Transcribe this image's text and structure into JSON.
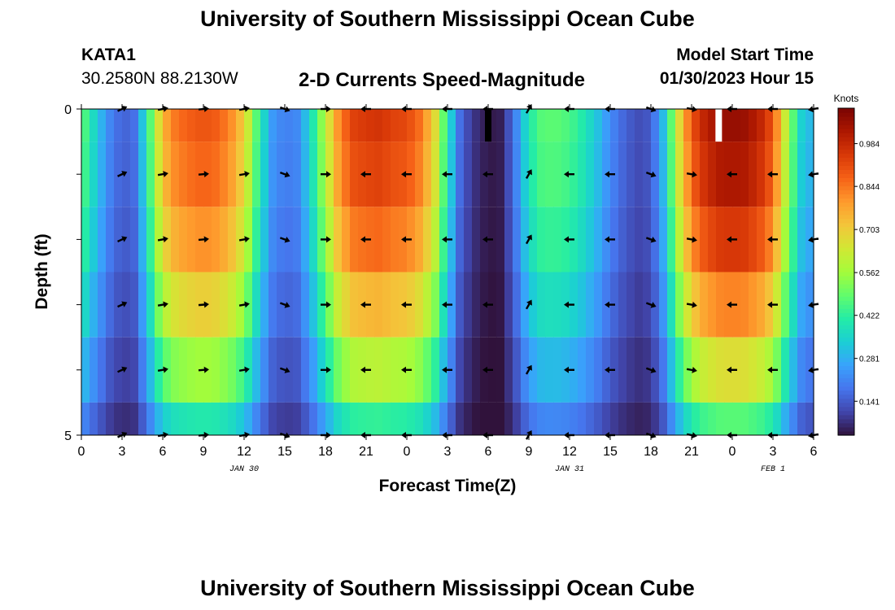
{
  "header": {
    "title": "University of Southern Mississippi Ocean Cube",
    "station": "KATA1",
    "coordinates": "30.2580N  88.2130W",
    "plot_title": "2-D Currents Speed-Magnitude",
    "start_label": "Model Start Time",
    "start_time": "01/30/2023 Hour 15"
  },
  "footer": {
    "title": "University of Southern Mississippi Ocean Cube"
  },
  "chart_data": {
    "type": "heatmap",
    "title": "2-D Currents Speed-Magnitude",
    "xlabel": "Forecast Time(Z)",
    "ylabel": "Depth (ft)",
    "x_ticks": [
      "0",
      "3",
      "6",
      "9",
      "12",
      "15",
      "18",
      "21",
      "0",
      "3",
      "6",
      "9",
      "12",
      "15",
      "18",
      "21",
      "0",
      "3",
      "6"
    ],
    "x_range_hours": [
      0,
      54
    ],
    "date_labels": [
      {
        "hour": 12,
        "text": "JAN 30"
      },
      {
        "hour": 36,
        "text": "JAN 31"
      },
      {
        "hour": 51,
        "text": "FEB 1"
      }
    ],
    "y_ticks": [
      "0",
      "5"
    ],
    "ylim": [
      0,
      5
    ],
    "depth_levels": [
      0,
      1,
      2,
      3,
      4,
      5
    ],
    "colorbar": {
      "label": "Knots",
      "ticks": [
        "0.984",
        "0.844",
        "0.703",
        "0.562",
        "0.422",
        "0.281",
        "0.141"
      ],
      "tick_values": [
        0.984,
        0.844,
        0.703,
        0.562,
        0.422,
        0.281,
        0.141
      ],
      "range": [
        0.03,
        1.1
      ]
    },
    "surface_profile": {
      "hours": [
        0,
        1,
        2,
        3,
        4,
        5,
        6,
        7,
        8,
        9,
        10,
        11,
        12,
        13,
        14,
        15,
        16,
        17,
        18,
        19,
        20,
        21,
        22,
        23,
        24,
        25,
        26,
        27,
        28,
        29,
        30,
        31,
        32,
        33,
        34,
        35,
        36,
        37,
        38,
        39,
        40,
        41,
        42,
        43,
        44,
        45,
        46,
        47,
        48,
        49,
        50,
        51,
        52,
        53,
        54
      ],
      "speed": [
        0.5,
        0.35,
        0.22,
        0.15,
        0.18,
        0.45,
        0.75,
        0.85,
        0.88,
        0.9,
        0.88,
        0.82,
        0.7,
        0.45,
        0.25,
        0.2,
        0.22,
        0.38,
        0.6,
        0.82,
        0.93,
        0.95,
        0.96,
        0.93,
        0.92,
        0.85,
        0.7,
        0.4,
        0.15,
        0.08,
        0.04,
        0.05,
        0.2,
        0.4,
        0.48,
        0.48,
        0.46,
        0.4,
        0.32,
        0.22,
        0.16,
        0.12,
        0.14,
        0.32,
        0.65,
        0.9,
        1.0,
        1.05,
        1.06,
        1.05,
        1.0,
        0.9,
        0.6,
        0.35,
        0.28
      ],
      "missing_hours": [
        30,
        47
      ]
    },
    "depth_factors": [
      1.0,
      0.97,
      0.9,
      0.78,
      0.63,
      0.45
    ],
    "vector_hours": [
      3,
      6,
      9,
      12,
      15,
      18,
      21,
      24,
      27,
      30,
      33,
      36,
      39,
      42,
      45,
      48,
      51,
      54
    ],
    "vector_directions_deg": [
      25,
      10,
      5,
      10,
      -20,
      0,
      180,
      180,
      180,
      180,
      60,
      180,
      180,
      -20,
      -10,
      180,
      180,
      190
    ]
  }
}
